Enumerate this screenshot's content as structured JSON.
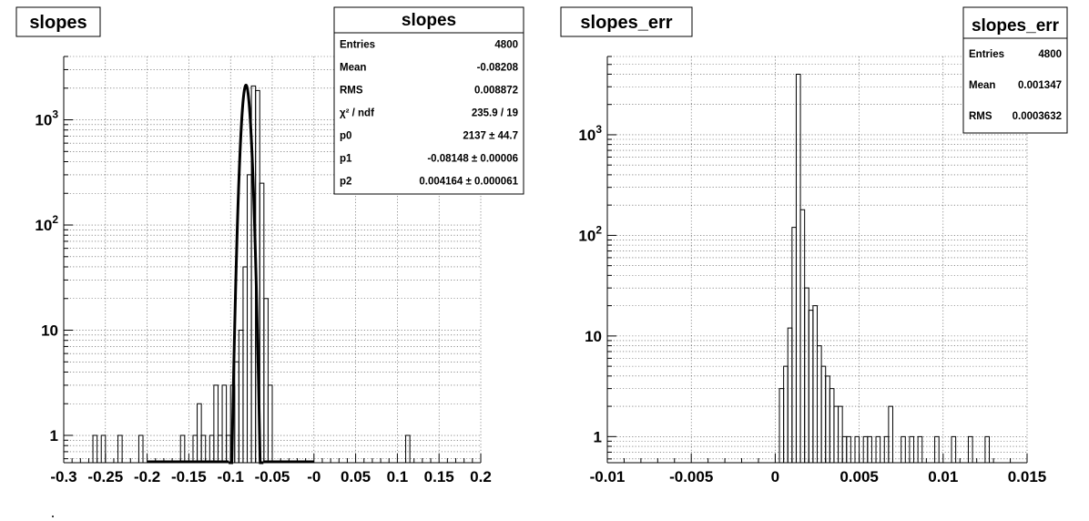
{
  "panels": [
    {
      "title": "slopes",
      "stats": {
        "title": "slopes",
        "rows": [
          {
            "key": "Entries",
            "value": "4800"
          },
          {
            "key": "Mean",
            "value": "-0.08208"
          },
          {
            "key": "RMS",
            "value": "0.008872"
          },
          {
            "key": "χ² / ndf",
            "value": "235.9 / 19"
          },
          {
            "key": "p0",
            "value": "2137 ± 44.7"
          },
          {
            "key": "p1",
            "value": "-0.08148 ± 0.00006"
          },
          {
            "key": "p2",
            "value": "0.004164 ± 0.000061"
          }
        ]
      }
    },
    {
      "title": "slopes_err",
      "stats": {
        "title": "slopes_err",
        "rows": [
          {
            "key": "Entries",
            "value": "4800"
          },
          {
            "key": "Mean",
            "value": "0.001347"
          },
          {
            "key": "RMS",
            "value": "0.0003632"
          }
        ]
      }
    }
  ],
  "chart_data": [
    {
      "type": "histogram",
      "title": "slopes",
      "xlabel": "",
      "ylabel": "",
      "y_scale": "log",
      "grid": true,
      "xlim": [
        -0.3,
        0.2
      ],
      "ylim": [
        0.55,
        4000
      ],
      "x_ticks": [
        "-0.3",
        "-0.25",
        "-0.2",
        "-0.15",
        "-0.1",
        "-0.05",
        "-0",
        "0.05",
        "0.1",
        "0.15",
        "0.2"
      ],
      "x_tick_values": [
        -0.3,
        -0.25,
        -0.2,
        -0.15,
        -0.1,
        -0.05,
        0,
        0.05,
        0.1,
        0.15,
        0.2
      ],
      "y_ticks": [
        "1",
        "10",
        "10^2",
        "10^3"
      ],
      "y_tick_values": [
        1,
        10,
        100,
        1000
      ],
      "bin_width": 0.005,
      "bins": [
        [
          -0.265,
          1
        ],
        [
          -0.255,
          1
        ],
        [
          -0.235,
          1
        ],
        [
          -0.21,
          1
        ],
        [
          -0.16,
          1
        ],
        [
          -0.145,
          1
        ],
        [
          -0.14,
          2
        ],
        [
          -0.135,
          1
        ],
        [
          -0.125,
          1
        ],
        [
          -0.12,
          3
        ],
        [
          -0.115,
          1
        ],
        [
          -0.11,
          3
        ],
        [
          -0.105,
          1
        ],
        [
          -0.1,
          3
        ],
        [
          -0.095,
          5
        ],
        [
          -0.09,
          10
        ],
        [
          -0.085,
          40
        ],
        [
          -0.08,
          300
        ],
        [
          -0.075,
          2100
        ],
        [
          -0.07,
          1900
        ],
        [
          -0.065,
          250
        ],
        [
          -0.06,
          20
        ],
        [
          -0.055,
          3
        ],
        [
          0.11,
          1
        ]
      ],
      "fit": {
        "function": "gaus",
        "p0": 2137,
        "p1": -0.08148,
        "p2": 0.004164
      }
    },
    {
      "type": "histogram",
      "title": "slopes_err",
      "xlabel": "",
      "ylabel": "",
      "y_scale": "log",
      "grid": true,
      "xlim": [
        -0.01,
        0.015
      ],
      "ylim": [
        0.55,
        6000
      ],
      "x_ticks": [
        "-0.01",
        "-0.005",
        "0",
        "0.005",
        "0.01",
        "0.015"
      ],
      "x_tick_values": [
        -0.01,
        -0.005,
        0,
        0.005,
        0.01,
        0.015
      ],
      "y_ticks": [
        "1",
        "10",
        "10^2",
        "10^3"
      ],
      "y_tick_values": [
        1,
        10,
        100,
        1000
      ],
      "bin_width": 0.00025,
      "bins": [
        [
          0.00025,
          3
        ],
        [
          0.0005,
          5
        ],
        [
          0.00075,
          12
        ],
        [
          0.001,
          120
        ],
        [
          0.00125,
          4000
        ],
        [
          0.0015,
          180
        ],
        [
          0.00175,
          30
        ],
        [
          0.002,
          18
        ],
        [
          0.00225,
          20
        ],
        [
          0.0025,
          8
        ],
        [
          0.00275,
          5
        ],
        [
          0.003,
          4
        ],
        [
          0.00325,
          3
        ],
        [
          0.0035,
          2
        ],
        [
          0.00375,
          2
        ],
        [
          0.004,
          1
        ],
        [
          0.00425,
          1
        ],
        [
          0.00475,
          1
        ],
        [
          0.00525,
          1
        ],
        [
          0.0055,
          1
        ],
        [
          0.006,
          1
        ],
        [
          0.0065,
          1
        ],
        [
          0.00675,
          2
        ],
        [
          0.0075,
          1
        ],
        [
          0.008,
          1
        ],
        [
          0.0085,
          1
        ],
        [
          0.0095,
          1
        ],
        [
          0.0105,
          1
        ],
        [
          0.0115,
          1
        ],
        [
          0.0125,
          1
        ]
      ]
    }
  ]
}
